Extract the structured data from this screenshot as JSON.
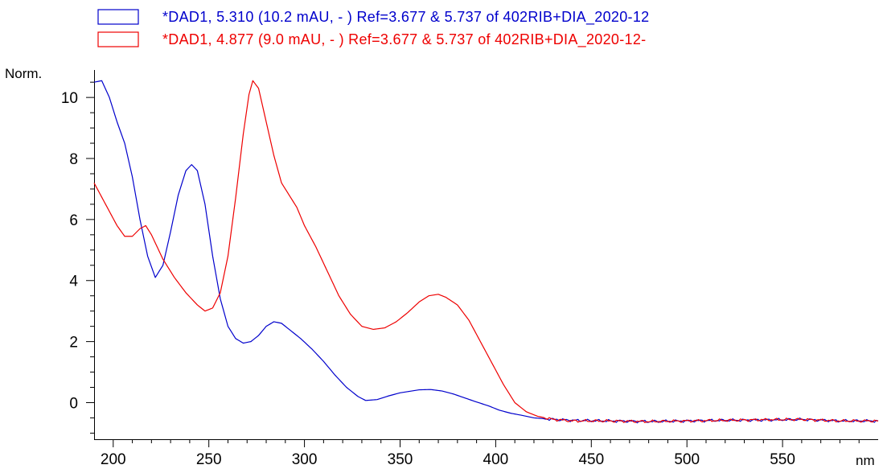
{
  "chart_data": {
    "type": "line",
    "title": "",
    "xlabel": "nm",
    "ylabel": "Norm.",
    "xlim": [
      190,
      600
    ],
    "ylim": [
      -1.2,
      10.9
    ],
    "x_ticks": [
      200,
      250,
      300,
      350,
      400,
      450,
      500,
      550
    ],
    "y_ticks": [
      0,
      2,
      4,
      6,
      8,
      10
    ],
    "grid": false,
    "legend_position": "top",
    "series": [
      {
        "name": "*DAD1, 5.310 (10.2 mAU, - ) Ref=3.677 & 5.737 of 402RIB+DIA_2020-12",
        "color": "#0000cc",
        "points": [
          [
            190,
            10.5
          ],
          [
            194,
            10.55
          ],
          [
            198,
            10.0
          ],
          [
            202,
            9.2
          ],
          [
            206,
            8.5
          ],
          [
            210,
            7.4
          ],
          [
            214,
            6.0
          ],
          [
            218,
            4.8
          ],
          [
            222,
            4.1
          ],
          [
            226,
            4.5
          ],
          [
            230,
            5.6
          ],
          [
            234,
            6.8
          ],
          [
            238,
            7.6
          ],
          [
            241,
            7.8
          ],
          [
            244,
            7.6
          ],
          [
            248,
            6.5
          ],
          [
            252,
            4.8
          ],
          [
            256,
            3.4
          ],
          [
            260,
            2.5
          ],
          [
            264,
            2.1
          ],
          [
            268,
            1.95
          ],
          [
            272,
            2.0
          ],
          [
            276,
            2.2
          ],
          [
            280,
            2.5
          ],
          [
            284,
            2.65
          ],
          [
            288,
            2.6
          ],
          [
            292,
            2.4
          ],
          [
            298,
            2.1
          ],
          [
            304,
            1.75
          ],
          [
            310,
            1.35
          ],
          [
            316,
            0.9
          ],
          [
            322,
            0.5
          ],
          [
            328,
            0.2
          ],
          [
            332,
            0.07
          ],
          [
            338,
            0.1
          ],
          [
            344,
            0.22
          ],
          [
            350,
            0.32
          ],
          [
            356,
            0.38
          ],
          [
            360,
            0.42
          ],
          [
            366,
            0.43
          ],
          [
            372,
            0.38
          ],
          [
            378,
            0.28
          ],
          [
            384,
            0.15
          ],
          [
            390,
            0.02
          ],
          [
            396,
            -0.1
          ],
          [
            402,
            -0.25
          ],
          [
            408,
            -0.35
          ],
          [
            414,
            -0.42
          ],
          [
            420,
            -0.5
          ],
          [
            430,
            -0.55
          ],
          [
            440,
            -0.58
          ],
          [
            460,
            -0.6
          ],
          [
            480,
            -0.62
          ],
          [
            500,
            -0.6
          ],
          [
            520,
            -0.58
          ],
          [
            540,
            -0.57
          ],
          [
            560,
            -0.55
          ],
          [
            580,
            -0.6
          ],
          [
            600,
            -0.6
          ]
        ]
      },
      {
        "name": "*DAD1, 4.877 (9.0 mAU, - ) Ref=3.677 & 5.737 of 402RIB+DIA_2020-12-",
        "color": "#ee0000",
        "points": [
          [
            190,
            7.2
          ],
          [
            196,
            6.5
          ],
          [
            202,
            5.8
          ],
          [
            206,
            5.45
          ],
          [
            210,
            5.45
          ],
          [
            214,
            5.7
          ],
          [
            217,
            5.8
          ],
          [
            220,
            5.5
          ],
          [
            226,
            4.7
          ],
          [
            232,
            4.1
          ],
          [
            238,
            3.6
          ],
          [
            244,
            3.2
          ],
          [
            248,
            3.0
          ],
          [
            252,
            3.1
          ],
          [
            256,
            3.6
          ],
          [
            260,
            4.8
          ],
          [
            264,
            6.7
          ],
          [
            268,
            8.8
          ],
          [
            271,
            10.1
          ],
          [
            273,
            10.55
          ],
          [
            276,
            10.3
          ],
          [
            280,
            9.2
          ],
          [
            284,
            8.1
          ],
          [
            288,
            7.2
          ],
          [
            292,
            6.8
          ],
          [
            296,
            6.4
          ],
          [
            300,
            5.8
          ],
          [
            306,
            5.1
          ],
          [
            312,
            4.3
          ],
          [
            318,
            3.5
          ],
          [
            324,
            2.9
          ],
          [
            330,
            2.5
          ],
          [
            336,
            2.4
          ],
          [
            342,
            2.45
          ],
          [
            348,
            2.65
          ],
          [
            354,
            2.95
          ],
          [
            360,
            3.3
          ],
          [
            365,
            3.5
          ],
          [
            370,
            3.55
          ],
          [
            374,
            3.45
          ],
          [
            380,
            3.2
          ],
          [
            386,
            2.7
          ],
          [
            392,
            2.0
          ],
          [
            398,
            1.3
          ],
          [
            404,
            0.6
          ],
          [
            410,
            0.0
          ],
          [
            416,
            -0.3
          ],
          [
            422,
            -0.45
          ],
          [
            430,
            -0.55
          ],
          [
            440,
            -0.6
          ],
          [
            460,
            -0.6
          ],
          [
            480,
            -0.62
          ],
          [
            500,
            -0.6
          ],
          [
            520,
            -0.58
          ],
          [
            540,
            -0.56
          ],
          [
            560,
            -0.55
          ],
          [
            580,
            -0.6
          ],
          [
            600,
            -0.6
          ]
        ]
      }
    ]
  }
}
